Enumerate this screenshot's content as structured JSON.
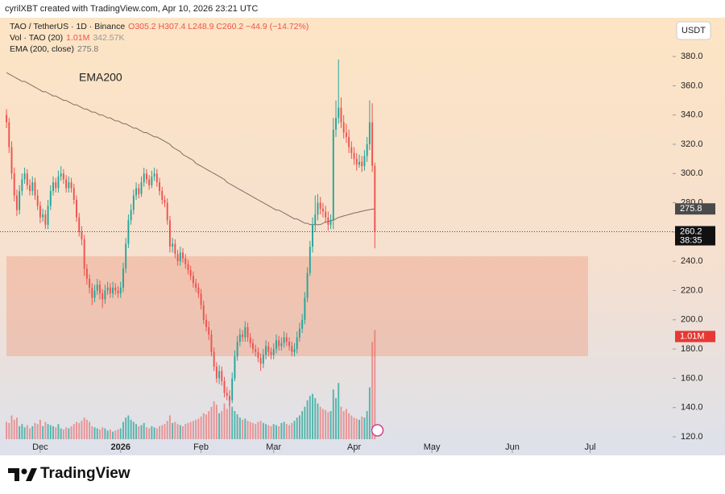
{
  "header": {
    "credit": "cyrilXBT created with TradingView.com, Apr 10, 2026 23:21 UTC",
    "symbol": "TAO / TetherUS · 1D · Binance",
    "ohlc": "O305.2 H307.4 L248.9 C260.2 −44.9 (−14.72%)",
    "vol_name": "Vol · TAO (20)",
    "ema_name": "EMA (200, close)",
    "currency": "USDT",
    "countdown": "38:35",
    "brand": "TradingView"
  },
  "chart_data": {
    "type": "candlestick",
    "annotation": "EMA200",
    "up_color": "#26a69a",
    "down_color": "#ef5350",
    "ema_color": "#7d6e62",
    "open": [
      340,
      335,
      318,
      300,
      285,
      275,
      288,
      296,
      300,
      292,
      288,
      294,
      285,
      278,
      270,
      272,
      265,
      278,
      288,
      294,
      290,
      298,
      300,
      296,
      290,
      294,
      290,
      282,
      270,
      260,
      255,
      235,
      228,
      222,
      215,
      220,
      224,
      218,
      214,
      220,
      222,
      218,
      222,
      220,
      218,
      222,
      235,
      252,
      268,
      275,
      285,
      290,
      286,
      294,
      300,
      296,
      292,
      298,
      300,
      294,
      288,
      282,
      280,
      268,
      250,
      252,
      245,
      240,
      246,
      242,
      238,
      234,
      230,
      225,
      222,
      218,
      210,
      200,
      195,
      190,
      178,
      168,
      160,
      165,
      158,
      150,
      148,
      145,
      160,
      175,
      185,
      190,
      188,
      195,
      188,
      184,
      180,
      178,
      174,
      170,
      176,
      182,
      178,
      176,
      180,
      186,
      182,
      184,
      188,
      185,
      182,
      178,
      180,
      188,
      194,
      200,
      215,
      232,
      250,
      265,
      272,
      280,
      276,
      274,
      270,
      265,
      268,
      330,
      338,
      345,
      335,
      328,
      325,
      318,
      314,
      310,
      306,
      308,
      305,
      312,
      320,
      335,
      305.2
    ],
    "high": [
      344,
      338,
      322,
      304,
      289,
      292,
      300,
      304,
      303,
      296,
      298,
      297,
      289,
      281,
      276,
      275,
      282,
      292,
      298,
      297,
      302,
      305,
      303,
      299,
      298,
      297,
      293,
      285,
      273,
      264,
      258,
      238,
      231,
      225,
      224,
      228,
      227,
      221,
      224,
      226,
      225,
      226,
      225,
      223,
      226,
      239,
      256,
      272,
      279,
      289,
      294,
      293,
      298,
      304,
      303,
      299,
      302,
      304,
      303,
      297,
      291,
      285,
      283,
      271,
      256,
      255,
      248,
      250,
      249,
      245,
      241,
      237,
      233,
      228,
      225,
      221,
      213,
      204,
      199,
      193,
      181,
      171,
      169,
      168,
      161,
      154,
      152,
      164,
      179,
      189,
      194,
      193,
      199,
      198,
      191,
      187,
      183,
      181,
      177,
      180,
      186,
      185,
      181,
      184,
      190,
      189,
      188,
      192,
      191,
      188,
      185,
      184,
      192,
      198,
      204,
      219,
      236,
      254,
      270,
      285,
      286,
      284,
      280,
      278,
      274,
      272,
      338,
      350,
      378,
      352,
      340,
      334,
      330,
      322,
      318,
      314,
      313,
      312,
      316,
      325,
      350,
      348,
      307.4
    ],
    "low": [
      331,
      314,
      296,
      281,
      271,
      272,
      285,
      293,
      289,
      285,
      285,
      282,
      275,
      266,
      267,
      262,
      262,
      275,
      285,
      287,
      287,
      295,
      293,
      287,
      287,
      287,
      279,
      267,
      257,
      251,
      230,
      224,
      218,
      210,
      212,
      217,
      214,
      208,
      211,
      217,
      215,
      215,
      217,
      215,
      215,
      219,
      232,
      249,
      265,
      272,
      282,
      283,
      284,
      291,
      293,
      289,
      290,
      295,
      291,
      285,
      279,
      277,
      265,
      246,
      246,
      242,
      237,
      237,
      239,
      235,
      231,
      227,
      222,
      219,
      215,
      207,
      197,
      192,
      186,
      175,
      165,
      157,
      156,
      155,
      147,
      145,
      141,
      143,
      158,
      172,
      182,
      185,
      185,
      185,
      181,
      177,
      175,
      171,
      165,
      167,
      173,
      175,
      173,
      173,
      177,
      179,
      179,
      181,
      182,
      179,
      175,
      175,
      177,
      185,
      191,
      197,
      212,
      230,
      246,
      260,
      268,
      272,
      270,
      266,
      261,
      262,
      262,
      325,
      334,
      331,
      324,
      321,
      314,
      310,
      306,
      302,
      304,
      301,
      302,
      308,
      316,
      301,
      248.9
    ],
    "close": [
      335,
      318,
      300,
      285,
      275,
      288,
      296,
      300,
      292,
      288,
      294,
      285,
      278,
      270,
      272,
      265,
      278,
      288,
      294,
      290,
      298,
      300,
      296,
      290,
      294,
      290,
      282,
      270,
      260,
      255,
      235,
      228,
      222,
      215,
      220,
      224,
      218,
      214,
      220,
      222,
      218,
      222,
      220,
      218,
      222,
      235,
      252,
      268,
      275,
      285,
      290,
      286,
      294,
      300,
      296,
      292,
      298,
      300,
      294,
      288,
      282,
      280,
      268,
      250,
      252,
      245,
      240,
      246,
      242,
      238,
      234,
      230,
      225,
      222,
      218,
      210,
      200,
      195,
      190,
      178,
      168,
      160,
      165,
      158,
      150,
      148,
      145,
      160,
      175,
      185,
      190,
      188,
      195,
      188,
      184,
      180,
      178,
      174,
      170,
      176,
      182,
      178,
      176,
      180,
      186,
      182,
      184,
      188,
      185,
      182,
      178,
      180,
      188,
      194,
      200,
      215,
      232,
      250,
      265,
      272,
      280,
      276,
      274,
      270,
      265,
      268,
      330,
      338,
      345,
      335,
      328,
      325,
      318,
      314,
      310,
      306,
      308,
      305,
      312,
      320,
      335,
      305.2,
      260.2
    ],
    "ema": [
      369,
      368,
      367,
      366,
      365,
      364,
      363,
      363,
      362,
      361,
      360,
      359,
      358,
      357,
      356,
      356,
      355,
      354,
      353,
      353,
      352,
      351,
      350,
      350,
      349,
      348,
      347,
      347,
      346,
      345,
      344,
      344,
      343,
      342,
      342,
      341,
      340,
      340,
      339,
      338,
      338,
      337,
      336,
      336,
      335,
      334,
      334,
      333,
      332,
      331,
      331,
      330,
      329,
      328,
      328,
      327,
      326,
      325,
      325,
      324,
      323,
      322,
      321,
      320,
      318,
      317,
      316,
      315,
      313,
      312,
      311,
      310,
      309,
      307,
      306,
      305,
      304,
      303,
      302,
      301,
      300,
      299,
      298,
      297,
      296,
      294,
      293,
      292,
      291,
      290,
      289,
      288,
      287,
      286,
      285,
      284,
      283,
      282,
      281,
      280,
      279,
      278,
      277,
      276,
      275,
      275,
      274,
      273,
      272,
      271,
      270,
      269,
      269,
      268,
      267,
      266,
      266,
      265,
      265,
      265,
      265,
      265,
      266,
      267,
      267,
      268,
      268,
      269,
      270,
      270.4,
      271,
      271.4,
      272,
      272.4,
      273,
      273.3,
      273.8,
      274.2,
      274.6,
      275,
      275.3,
      275.6,
      275.8
    ],
    "volume": {
      "values": [
        160000,
        150000,
        220000,
        180000,
        200000,
        120000,
        140000,
        110000,
        130000,
        100000,
        120000,
        150000,
        140000,
        180000,
        120000,
        160000,
        140000,
        130000,
        120000,
        110000,
        140000,
        100000,
        90000,
        110000,
        100000,
        120000,
        140000,
        160000,
        150000,
        170000,
        200000,
        180000,
        160000,
        120000,
        110000,
        100000,
        90000,
        110000,
        100000,
        80000,
        90000,
        70000,
        80000,
        90000,
        100000,
        160000,
        200000,
        220000,
        180000,
        160000,
        140000,
        120000,
        130000,
        150000,
        110000,
        100000,
        120000,
        110000,
        100000,
        120000,
        130000,
        140000,
        170000,
        220000,
        150000,
        160000,
        140000,
        130000,
        120000,
        140000,
        150000,
        160000,
        170000,
        180000,
        190000,
        210000,
        240000,
        230000,
        260000,
        300000,
        350000,
        320000,
        240000,
        260000,
        330000,
        280000,
        360000,
        300000,
        260000,
        230000,
        200000,
        180000,
        190000,
        170000,
        160000,
        150000,
        140000,
        160000,
        170000,
        150000,
        140000,
        130000,
        120000,
        140000,
        130000,
        120000,
        150000,
        160000,
        140000,
        130000,
        150000,
        170000,
        200000,
        220000,
        260000,
        300000,
        360000,
        400000,
        420000,
        380000,
        330000,
        300000,
        280000,
        270000,
        250000,
        260000,
        460000,
        380000,
        520000,
        300000,
        260000,
        280000,
        240000,
        220000,
        200000,
        190000,
        180000,
        210000,
        200000,
        260000,
        480000,
        900000,
        1010000
      ],
      "last_label": "1.01M",
      "ma": {
        "value": 342570,
        "label": "342.57K"
      },
      "ylim": [
        0,
        3900000
      ]
    },
    "zone": {
      "top": 243.4,
      "bottom": 175.1,
      "color": "rgba(236,150,120,0.38)"
    },
    "xlim": [
      -2.5,
      256.8
    ],
    "xticks": [
      {
        "value": 13,
        "label": "Dec"
      },
      {
        "value": 44,
        "label": "2026"
      },
      {
        "value": 75,
        "label": "Feb"
      },
      {
        "value": 103,
        "label": "Mar"
      },
      {
        "value": 134,
        "label": "Apr"
      },
      {
        "value": 164,
        "label": "May"
      },
      {
        "value": 195,
        "label": "Jun"
      },
      {
        "value": 225,
        "label": "Jul"
      }
    ],
    "ylim": [
      110.1,
      406.5
    ],
    "yticks": [
      {
        "value": 120,
        "label": "120.0"
      },
      {
        "value": 140,
        "label": "140.0"
      },
      {
        "value": 160,
        "label": "160.0"
      },
      {
        "value": 180,
        "label": "180.0"
      },
      {
        "value": 200,
        "label": "200.0"
      },
      {
        "value": 220,
        "label": "220.0"
      },
      {
        "value": 240,
        "label": "240.0"
      },
      {
        "value": 260,
        "label": "260.0"
      },
      {
        "value": 280,
        "label": "280.0"
      },
      {
        "value": 300,
        "label": "300.0"
      },
      {
        "value": 320,
        "label": "320.0"
      },
      {
        "value": 340,
        "label": "340.0"
      },
      {
        "value": 360,
        "label": "360.0"
      },
      {
        "value": 380,
        "label": "380.0"
      }
    ]
  }
}
